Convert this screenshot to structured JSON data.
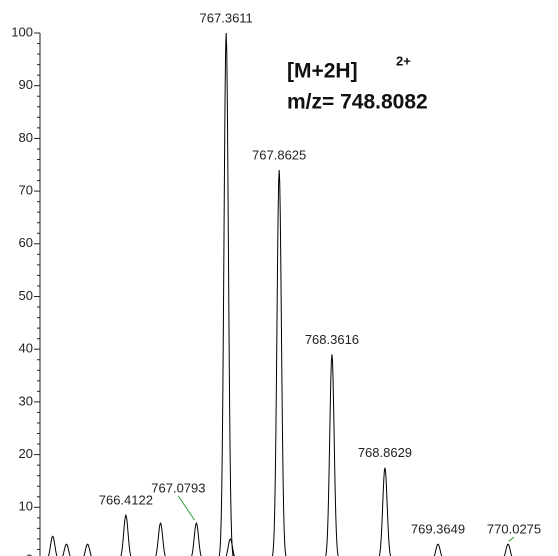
{
  "chart_data": {
    "type": "spectrum",
    "annotation": {
      "ion": "[M+2H]",
      "charge": "2+",
      "mz": "m/z= 748.8082"
    },
    "peaks": {
      "x": [
        766.4122,
        767.0793,
        767.3611,
        767.8625,
        768.3616,
        768.8629,
        769.3649,
        770.0275
      ],
      "values": [
        8.5,
        7,
        100,
        74,
        39,
        17.5,
        3,
        3
      ]
    },
    "minor_peaks": {
      "x": [
        765.72,
        765.85,
        766.05,
        766.74,
        767.4
      ],
      "values": [
        4.5,
        3,
        3,
        7,
        4
      ]
    },
    "xlim": [
      765.6,
      770.5
    ],
    "ylim": [
      0,
      100
    ],
    "yticks": [
      0,
      10,
      20,
      30,
      40,
      50,
      60,
      70,
      80,
      90,
      100
    ],
    "color": "#000000",
    "leader_color": "#2e9e3e"
  }
}
